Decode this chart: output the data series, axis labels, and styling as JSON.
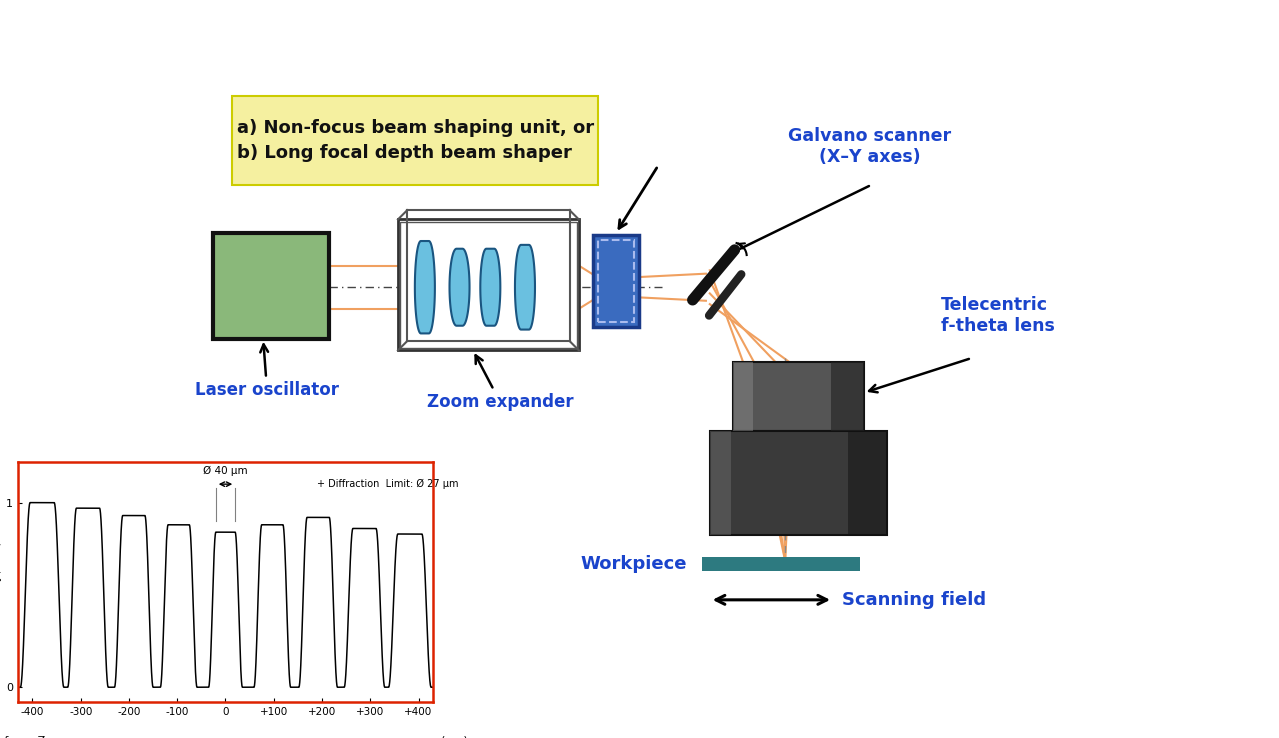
{
  "bg_color": "#ffffff",
  "yellow_box_text": "a) Non-focus beam shaping unit, or\nb) Long focal depth beam shaper",
  "yellow_box_color": "#f5f0a0",
  "yellow_box_border": "#cccc00",
  "label_laser": "Laser oscillator",
  "label_zoom": "Zoom expander",
  "label_galvano": "Galvano scanner\n(X–Y axes)",
  "label_telecentric": "Telecentric\nf-theta lens",
  "label_workpiece": "Workpiece",
  "label_scanning": "Scanning field",
  "label_diameter": "Ø 40 μm",
  "label_diffraction": "+ Diffraction  Limit: Ø 27 μm",
  "laser_color": "#8ab87a",
  "beam_shaper_color": "#3a6bbf",
  "lens_color": "#6ac0e0",
  "beam_color": "#f0a060",
  "plot_border_color": "#dd2200",
  "text_color_blue": "#1a44cc",
  "text_color_black": "#111111",
  "workpiece_color": "#2d7a80",
  "mirror_color": "#111111",
  "lens_dark": "#3a3a3a",
  "lens_mid": "#555555",
  "lens_light": "#888888"
}
